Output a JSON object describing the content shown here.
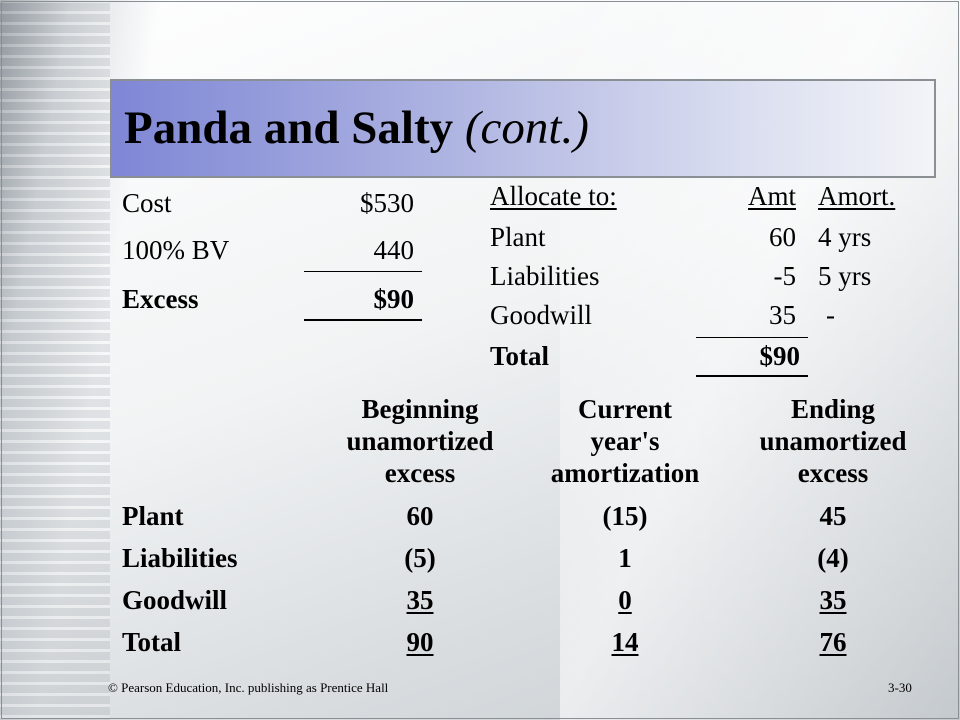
{
  "slide": {
    "title_main": "Panda and Salty",
    "title_sub": "(cont.)",
    "cost_table": {
      "rows": [
        {
          "label": "Cost",
          "value": "$530"
        },
        {
          "label": "100% BV",
          "value": "440"
        },
        {
          "label": "Excess",
          "value": "$90"
        }
      ]
    },
    "allocation_table": {
      "headers": {
        "label": "Allocate to:",
        "amt": "Amt",
        "amort": "Amort."
      },
      "rows": [
        {
          "label": "Plant",
          "amt": "60",
          "amort": "4 yrs"
        },
        {
          "label": "Liabilities",
          "amt": "-5",
          "amort": "5 yrs"
        },
        {
          "label": "Goodwill",
          "amt": "35",
          "amort": "-"
        },
        {
          "label": "Total",
          "amt": "$90",
          "amort": ""
        }
      ]
    },
    "amortization_table": {
      "headers": [
        [
          "Beginning",
          "unamortized",
          "excess"
        ],
        [
          "Current",
          "year's",
          "amortization"
        ],
        [
          "Ending",
          "unamortized",
          "excess"
        ]
      ],
      "rows": [
        {
          "label": "Plant",
          "values": [
            "60",
            "(15)",
            "45"
          ]
        },
        {
          "label": "Liabilities",
          "values": [
            "(5)",
            "1",
            "(4)"
          ]
        },
        {
          "label": "Goodwill",
          "values": [
            "35",
            "0",
            "35"
          ]
        },
        {
          "label": "Total",
          "values": [
            "90",
            "14",
            "76"
          ]
        }
      ]
    },
    "footer": {
      "copyright": "© Pearson Education, Inc. publishing as Prentice Hall",
      "page": "3-30"
    }
  }
}
